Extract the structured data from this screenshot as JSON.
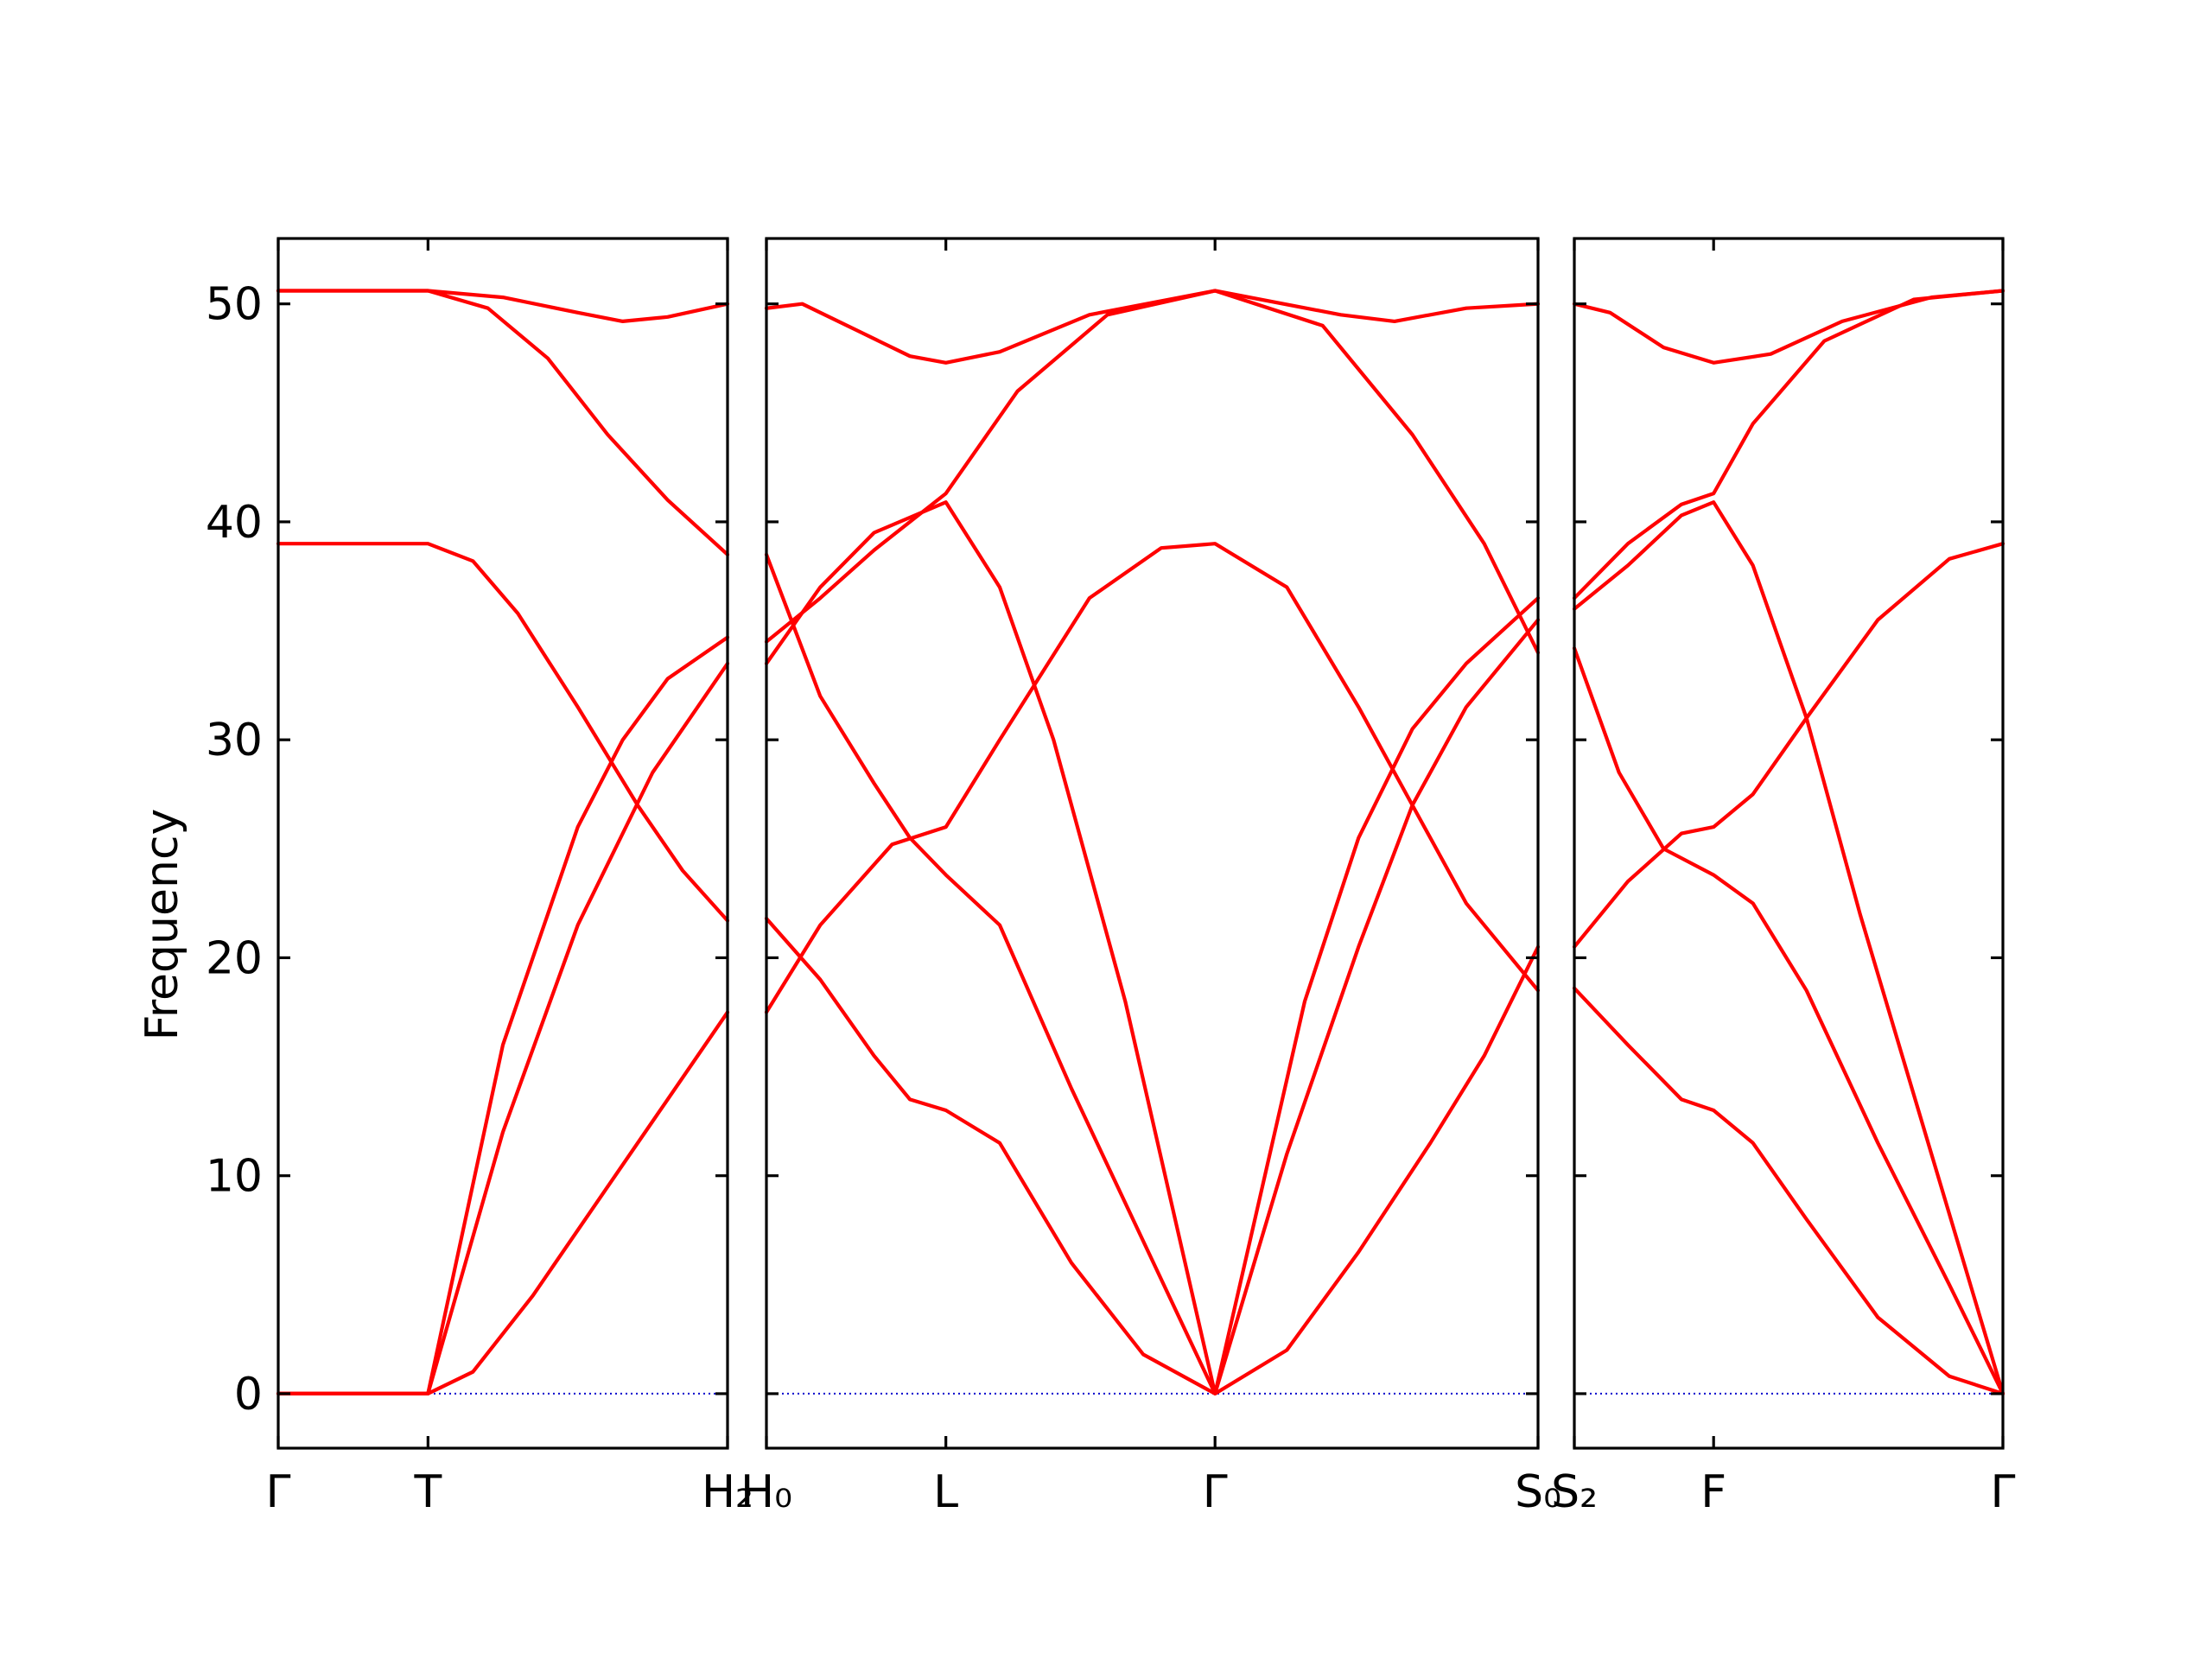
{
  "chart_data": {
    "type": "line",
    "ylabel": "Frequency",
    "ylim": [
      -2.5,
      53
    ],
    "yticks": [
      0,
      10,
      20,
      30,
      40,
      50
    ],
    "colors": {
      "bands": "#ff0000",
      "zero_line": "#0000cc",
      "frame": "#000000"
    },
    "panels": [
      {
        "xlim": [
          0,
          3
        ],
        "x_ticks": [
          {
            "x": 0,
            "label": "Γ"
          },
          {
            "x": 1,
            "label": "T"
          },
          {
            "x": 3,
            "label": "H₂"
          }
        ],
        "series": [
          {
            "points": [
              [
                0,
                50.6
              ],
              [
                1,
                50.6
              ],
              [
                1.5,
                50.3
              ],
              [
                2,
                49.6
              ],
              [
                2.3,
                49.2
              ],
              [
                2.6,
                49.4
              ],
              [
                3,
                50.0
              ]
            ]
          },
          {
            "points": [
              [
                0,
                50.6
              ],
              [
                1,
                50.6
              ],
              [
                1.4,
                49.8
              ],
              [
                1.8,
                47.5
              ],
              [
                2.2,
                44.0
              ],
              [
                2.6,
                41.0
              ],
              [
                3,
                38.5
              ]
            ]
          },
          {
            "points": [
              [
                0,
                39.0
              ],
              [
                1,
                39.0
              ],
              [
                1.3,
                38.2
              ],
              [
                1.6,
                35.8
              ],
              [
                2,
                31.5
              ],
              [
                2.4,
                27.0
              ],
              [
                2.7,
                24.0
              ],
              [
                3,
                21.7
              ]
            ]
          },
          {
            "points": [
              [
                0,
                0
              ],
              [
                1,
                0
              ],
              [
                1.5,
                16.0
              ],
              [
                2,
                26.0
              ],
              [
                2.3,
                30.0
              ],
              [
                2.6,
                32.8
              ],
              [
                3,
                34.7
              ]
            ]
          },
          {
            "points": [
              [
                0,
                0
              ],
              [
                1,
                0
              ],
              [
                1.5,
                12.0
              ],
              [
                2,
                21.5
              ],
              [
                2.5,
                28.5
              ],
              [
                3,
                33.5
              ]
            ]
          },
          {
            "points": [
              [
                0,
                0
              ],
              [
                1,
                0
              ],
              [
                1.3,
                1.0
              ],
              [
                1.7,
                4.5
              ],
              [
                2.2,
                9.5
              ],
              [
                2.6,
                13.5
              ],
              [
                3,
                17.5
              ]
            ]
          }
        ]
      },
      {
        "xlim": [
          0,
          4.3
        ],
        "x_ticks": [
          {
            "x": 0,
            "label": "H₀"
          },
          {
            "x": 1,
            "label": "L"
          },
          {
            "x": 2.5,
            "label": "Γ"
          },
          {
            "x": 4.3,
            "label": "S₀"
          }
        ],
        "series": [
          {
            "points": [
              [
                0,
                49.8
              ],
              [
                0.2,
                50.0
              ],
              [
                0.5,
                48.8
              ],
              [
                0.8,
                47.6
              ],
              [
                1,
                47.3
              ],
              [
                1.3,
                47.8
              ],
              [
                1.8,
                49.5
              ],
              [
                2.5,
                50.6
              ],
              [
                3.2,
                49.5
              ],
              [
                3.5,
                49.2
              ],
              [
                3.9,
                49.8
              ],
              [
                4.3,
                50.0
              ]
            ]
          },
          {
            "points": [
              [
                0,
                34.5
              ],
              [
                0.3,
                36.5
              ],
              [
                0.6,
                38.7
              ],
              [
                1,
                41.3
              ],
              [
                1.4,
                46.0
              ],
              [
                1.9,
                49.5
              ],
              [
                2.5,
                50.6
              ],
              [
                3.1,
                49.0
              ],
              [
                3.6,
                44.0
              ],
              [
                4.0,
                39.0
              ],
              [
                4.3,
                34.0
              ]
            ]
          },
          {
            "points": [
              [
                0,
                33.5
              ],
              [
                0.3,
                37.0
              ],
              [
                0.6,
                39.5
              ],
              [
                1,
                40.9
              ],
              [
                1.3,
                37.0
              ],
              [
                1.6,
                30.0
              ],
              [
                2,
                18.0
              ],
              [
                2.5,
                0
              ],
              [
                3.0,
                18.0
              ],
              [
                3.3,
                25.5
              ],
              [
                3.6,
                30.5
              ],
              [
                3.9,
                33.5
              ],
              [
                4.3,
                36.5
              ]
            ]
          },
          {
            "points": [
              [
                0,
                38.5
              ],
              [
                0.3,
                32.0
              ],
              [
                0.6,
                28.0
              ],
              [
                0.8,
                25.5
              ],
              [
                1,
                23.8
              ],
              [
                1.3,
                21.5
              ],
              [
                1.7,
                14.0
              ],
              [
                2.1,
                7.0
              ],
              [
                2.5,
                0
              ],
              [
                2.9,
                11.0
              ],
              [
                3.3,
                20.5
              ],
              [
                3.6,
                27.0
              ],
              [
                3.9,
                31.5
              ],
              [
                4.3,
                35.5
              ]
            ]
          },
          {
            "points": [
              [
                0,
                17.5
              ],
              [
                0.3,
                21.5
              ],
              [
                0.7,
                25.2
              ],
              [
                1,
                26.0
              ],
              [
                1.3,
                30.0
              ],
              [
                1.8,
                36.5
              ],
              [
                2.2,
                38.8
              ],
              [
                2.5,
                39.0
              ],
              [
                2.9,
                37.0
              ],
              [
                3.3,
                31.5
              ],
              [
                3.6,
                27.0
              ],
              [
                3.9,
                22.5
              ],
              [
                4.3,
                18.5
              ]
            ]
          },
          {
            "points": [
              [
                0,
                21.8
              ],
              [
                0.3,
                19.0
              ],
              [
                0.6,
                15.5
              ],
              [
                0.8,
                13.5
              ],
              [
                1,
                13.0
              ],
              [
                1.3,
                11.5
              ],
              [
                1.7,
                6.0
              ],
              [
                2.1,
                1.8
              ],
              [
                2.5,
                0
              ],
              [
                2.9,
                2.0
              ],
              [
                3.3,
                6.5
              ],
              [
                3.7,
                11.5
              ],
              [
                4.0,
                15.5
              ],
              [
                4.3,
                20.5
              ]
            ]
          }
        ]
      },
      {
        "xlim": [
          0,
          2.4
        ],
        "x_ticks": [
          {
            "x": 0,
            "label": "S₂"
          },
          {
            "x": 0.78,
            "label": "F"
          },
          {
            "x": 2.4,
            "label": "Γ"
          }
        ],
        "series": [
          {
            "points": [
              [
                0,
                50.0
              ],
              [
                0.2,
                49.6
              ],
              [
                0.5,
                48.0
              ],
              [
                0.78,
                47.3
              ],
              [
                1.1,
                47.7
              ],
              [
                1.5,
                49.2
              ],
              [
                2.0,
                50.3
              ],
              [
                2.4,
                50.6
              ]
            ]
          },
          {
            "points": [
              [
                0,
                36.5
              ],
              [
                0.3,
                39.0
              ],
              [
                0.6,
                40.8
              ],
              [
                0.78,
                41.3
              ],
              [
                1.0,
                44.5
              ],
              [
                1.4,
                48.3
              ],
              [
                1.9,
                50.2
              ],
              [
                2.4,
                50.6
              ]
            ]
          },
          {
            "points": [
              [
                0,
                36.0
              ],
              [
                0.3,
                38.0
              ],
              [
                0.6,
                40.3
              ],
              [
                0.78,
                40.9
              ],
              [
                1.0,
                38.0
              ],
              [
                1.3,
                31.0
              ],
              [
                1.6,
                22.0
              ],
              [
                2.0,
                11.0
              ],
              [
                2.4,
                0
              ]
            ]
          },
          {
            "points": [
              [
                0,
                34.2
              ],
              [
                0.25,
                28.5
              ],
              [
                0.5,
                25.0
              ],
              [
                0.78,
                23.8
              ],
              [
                1.0,
                22.5
              ],
              [
                1.3,
                18.5
              ],
              [
                1.7,
                11.5
              ],
              [
                2.1,
                5.0
              ],
              [
                2.4,
                0
              ]
            ]
          },
          {
            "points": [
              [
                0,
                20.5
              ],
              [
                0.3,
                23.5
              ],
              [
                0.6,
                25.7
              ],
              [
                0.78,
                26.0
              ],
              [
                1.0,
                27.5
              ],
              [
                1.3,
                31.0
              ],
              [
                1.7,
                35.5
              ],
              [
                2.1,
                38.3
              ],
              [
                2.4,
                39.0
              ]
            ]
          },
          {
            "points": [
              [
                0,
                18.6
              ],
              [
                0.3,
                16.0
              ],
              [
                0.6,
                13.5
              ],
              [
                0.78,
                13.0
              ],
              [
                1.0,
                11.5
              ],
              [
                1.3,
                8.0
              ],
              [
                1.7,
                3.5
              ],
              [
                2.1,
                0.8
              ],
              [
                2.4,
                0
              ]
            ]
          }
        ]
      }
    ]
  }
}
